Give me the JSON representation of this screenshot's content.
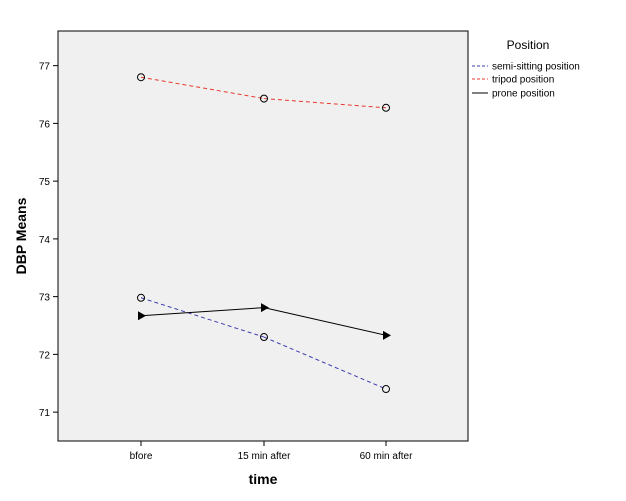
{
  "chart_data": {
    "type": "line",
    "title": "",
    "xlabel": "time",
    "ylabel": "DBP Means",
    "categories": [
      "bfore",
      "15 min after",
      "60 min after"
    ],
    "ylim": [
      70.5,
      77.6
    ],
    "yticks": [
      "71",
      "72",
      "73",
      "74",
      "75",
      "76",
      "77"
    ],
    "legend_title": "Position",
    "legend_position": "right",
    "series": [
      {
        "name": "semi-sitting position",
        "values": [
          72.98,
          72.3,
          71.4
        ],
        "color": "#3b3bb0",
        "style": "dashed",
        "marker": "circle"
      },
      {
        "name": "tripod position",
        "values": [
          76.8,
          76.43,
          76.27
        ],
        "color": "#e8392d",
        "style": "dashed",
        "marker": "circle"
      },
      {
        "name": "prone position",
        "values": [
          72.67,
          72.81,
          72.33
        ],
        "color": "#000000",
        "style": "solid",
        "marker": "triangle-right"
      }
    ]
  },
  "colors": {
    "plot_background": "#f0f0f0",
    "axis": "#000000"
  }
}
